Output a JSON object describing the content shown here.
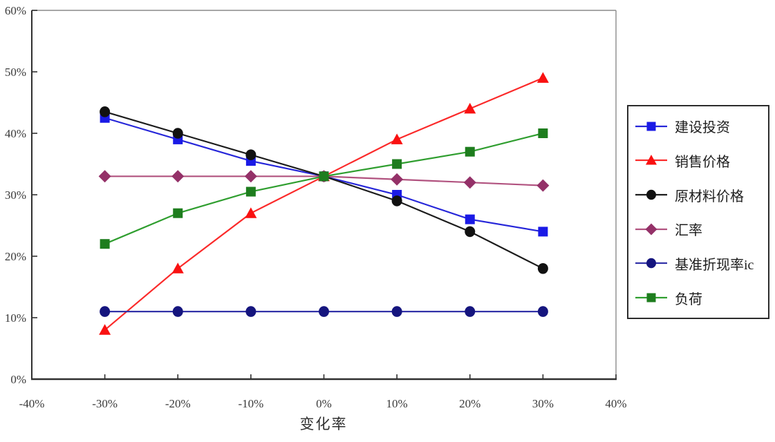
{
  "chart_data": {
    "type": "line",
    "title": "",
    "xlabel": "变化率",
    "ylabel": "",
    "xlim": [
      -40,
      40
    ],
    "ylim": [
      0,
      60
    ],
    "grid": false,
    "legend_position": "right",
    "x_tick_labels": [
      "-40%",
      "-30%",
      "-20%",
      "-10%",
      "0%",
      "10%",
      "20%",
      "30%",
      "40%"
    ],
    "y_tick_labels": [
      "0%",
      "10%",
      "20%",
      "30%",
      "40%",
      "50%",
      "60%"
    ],
    "x": [
      -30,
      -20,
      -10,
      0,
      10,
      20,
      30
    ],
    "series": [
      {
        "name": "建设投资",
        "marker": "square",
        "color": "#1a1ae6",
        "line_color": "#2626d9",
        "values": [
          42.5,
          39,
          35.5,
          33,
          30,
          26,
          24
        ]
      },
      {
        "name": "销售价格",
        "marker": "triangle",
        "color": "#f91111",
        "line_color": "#fb2a2a",
        "values": [
          8,
          18,
          27,
          33,
          39,
          44,
          49
        ]
      },
      {
        "name": "原材料价格",
        "marker": "circle",
        "color": "#111111",
        "line_color": "#1c1c1c",
        "values": [
          43.5,
          40,
          36.5,
          33,
          29,
          24,
          18
        ]
      },
      {
        "name": "汇率",
        "marker": "diamond",
        "color": "#943168",
        "line_color": "#b1527f",
        "values": [
          33,
          33,
          33,
          33,
          32.5,
          32,
          31.5
        ]
      },
      {
        "name": "基准折现率ic",
        "marker": "circle",
        "color": "#15157e",
        "line_color": "#3232a8",
        "values": [
          11,
          11,
          11,
          11,
          11,
          11,
          11
        ]
      },
      {
        "name": "负荷",
        "marker": "square",
        "color": "#1e7d1e",
        "line_color": "#2f9e2f",
        "values": [
          22,
          27,
          30.5,
          33,
          35,
          37,
          40
        ]
      }
    ]
  }
}
